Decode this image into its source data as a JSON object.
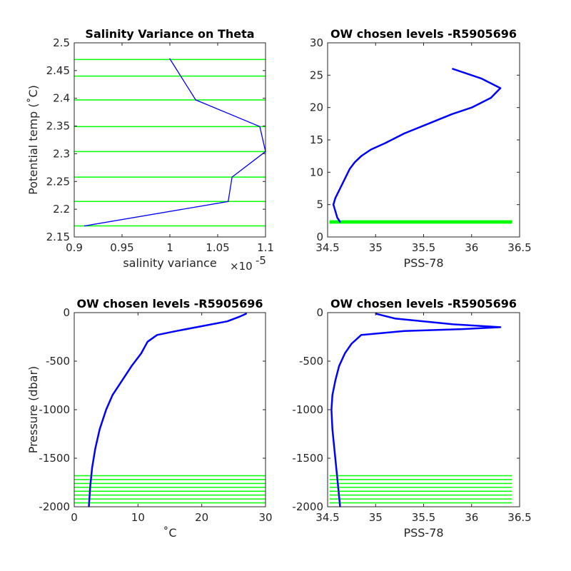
{
  "colors": {
    "profile": "#0000ff",
    "levels": "#00ff00",
    "axis": "#262626"
  },
  "chart_data": [
    {
      "type": "line",
      "title": "Salinity Variance on Theta",
      "xlabel": "salinity variance",
      "x_exponent_label": "×10",
      "x_exponent_power": "-5",
      "ylabel": "Potential temp (˚C)",
      "xlim": [
        0.9,
        1.1
      ],
      "ylim": [
        2.15,
        2.5
      ],
      "xticks": [
        0.9,
        0.95,
        1,
        1.05,
        1.1
      ],
      "xtick_labels": [
        "0.9",
        "0.95",
        "1",
        "1.05",
        "1.1"
      ],
      "yticks": [
        2.15,
        2.2,
        2.25,
        2.3,
        2.35,
        2.4,
        2.45,
        2.5
      ],
      "ytick_labels": [
        "2.15",
        "2.2",
        "2.25",
        "2.3",
        "2.35",
        "2.4",
        "2.45",
        "2.5"
      ],
      "series": [
        {
          "x": [
            1.0,
            1.027,
            1.094,
            1.1,
            1.065,
            1.061,
            0.911
          ],
          "y": [
            2.471,
            2.397,
            2.349,
            2.304,
            2.258,
            2.214,
            2.17
          ]
        }
      ],
      "chosen_levels": [
        2.47,
        2.44,
        2.397,
        2.349,
        2.304,
        2.258,
        2.214,
        2.17
      ]
    },
    {
      "type": "line",
      "title": "OW chosen levels -R5905696",
      "xlabel": "PSS-78",
      "ylabel": "",
      "xlim": [
        34.5,
        36.5
      ],
      "ylim": [
        0,
        30
      ],
      "xticks": [
        34.5,
        35,
        35.5,
        36,
        36.5
      ],
      "xtick_labels": [
        "34.5",
        "35",
        "35.5",
        "36",
        "36.5"
      ],
      "yticks": [
        0,
        5,
        10,
        15,
        20,
        25,
        30
      ],
      "ytick_labels": [
        "0",
        "5",
        "10",
        "15",
        "20",
        "25",
        "30"
      ],
      "series": [
        {
          "x": [
            34.63,
            34.6,
            34.58,
            34.56,
            34.58,
            34.63,
            34.68,
            34.73,
            34.78,
            34.85,
            34.95,
            35.1,
            35.3,
            35.55,
            35.8,
            36.0,
            36.2,
            36.3,
            36.1,
            35.8
          ],
          "y": [
            2.3,
            3.0,
            4.0,
            5.0,
            6.0,
            7.5,
            9.0,
            10.5,
            11.5,
            12.5,
            13.5,
            14.5,
            16.0,
            17.5,
            19.0,
            20.0,
            21.5,
            23.0,
            24.5,
            26.0
          ]
        }
      ],
      "chosen_levels": [
        2.17,
        2.214,
        2.258,
        2.304,
        2.349,
        2.397,
        2.44,
        2.47
      ]
    },
    {
      "type": "line",
      "title": "OW chosen levels -R5905696",
      "xlabel": "˚C",
      "ylabel": "Pressure (dbar)",
      "xlim": [
        0,
        30
      ],
      "ylim": [
        -2000,
        0
      ],
      "xticks": [
        0,
        10,
        20,
        30
      ],
      "xtick_labels": [
        "0",
        "10",
        "20",
        "30"
      ],
      "yticks": [
        -2000,
        -1500,
        -1000,
        -500,
        0
      ],
      "ytick_labels": [
        "-2000",
        "-1500",
        "-1000",
        "-500",
        "0"
      ],
      "series": [
        {
          "x": [
            2.3,
            2.5,
            2.8,
            3.3,
            4.0,
            5.0,
            6.0,
            7.5,
            9.0,
            10.5,
            11.5,
            13.0,
            16.0,
            20.0,
            24.0,
            26.0,
            27.0
          ],
          "y": [
            -2000,
            -1800,
            -1600,
            -1400,
            -1200,
            -1000,
            -850,
            -700,
            -550,
            -420,
            -300,
            -230,
            -190,
            -140,
            -90,
            -40,
            -10
          ]
        }
      ],
      "chosen_levels": [
        -1960,
        -1920,
        -1880,
        -1840,
        -1800,
        -1760,
        -1720,
        -1680
      ]
    },
    {
      "type": "line",
      "title": "OW chosen levels -R5905696",
      "xlabel": "PSS-78",
      "ylabel": "",
      "xlim": [
        34.5,
        36.5
      ],
      "ylim": [
        -2000,
        0
      ],
      "xticks": [
        34.5,
        35,
        35.5,
        36,
        36.5
      ],
      "xtick_labels": [
        "34.5",
        "35",
        "35.5",
        "36",
        "36.5"
      ],
      "yticks": [
        -2000,
        -1500,
        -1000,
        -500,
        0
      ],
      "ytick_labels": [
        "-2000",
        "-1500",
        "-1000",
        "-500",
        "0"
      ],
      "series": [
        {
          "x": [
            34.63,
            34.6,
            34.57,
            34.55,
            34.54,
            34.55,
            34.58,
            34.62,
            34.68,
            34.75,
            34.85,
            35.3,
            35.9,
            36.3,
            35.8,
            35.2,
            35.0
          ],
          "y": [
            -2000,
            -1700,
            -1400,
            -1200,
            -1000,
            -850,
            -700,
            -550,
            -420,
            -320,
            -230,
            -190,
            -170,
            -150,
            -120,
            -60,
            -10
          ]
        }
      ],
      "chosen_levels": [
        -1960,
        -1920,
        -1880,
        -1840,
        -1800,
        -1760,
        -1720,
        -1680
      ]
    }
  ]
}
